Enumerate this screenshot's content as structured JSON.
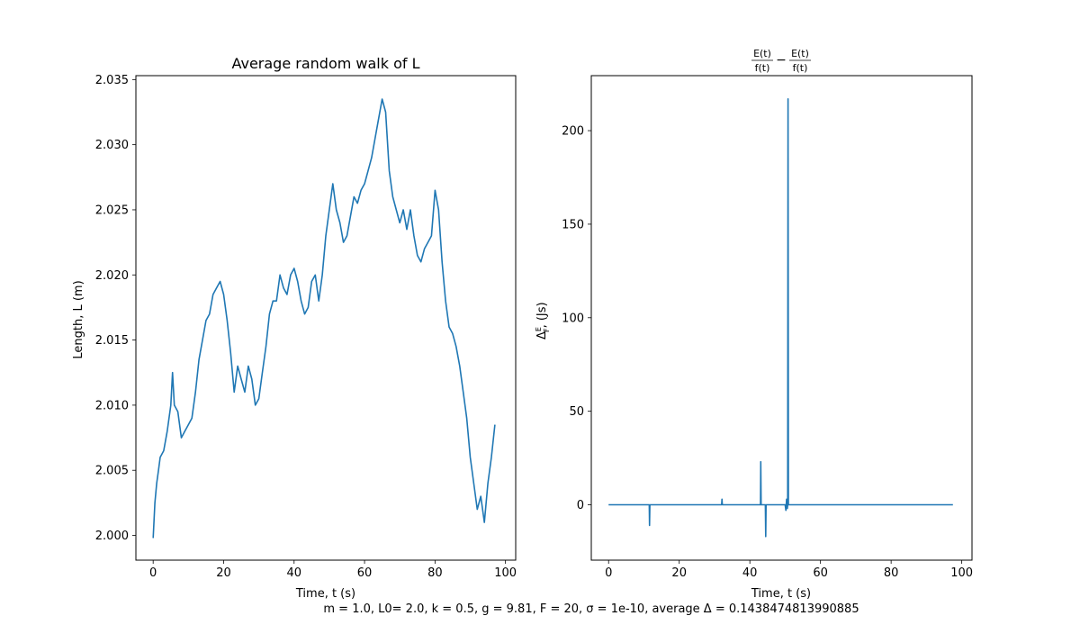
{
  "chart_data": [
    {
      "type": "line",
      "title": "Average random walk of L",
      "xlabel": "Time, t (s)",
      "ylabel": "Length, L (m)",
      "xlim": [
        -4.9,
        102.9
      ],
      "ylim": [
        1.9981,
        2.0353
      ],
      "xticks": [
        0,
        20,
        40,
        60,
        80,
        100
      ],
      "yticks": [
        2.0,
        2.005,
        2.01,
        2.015,
        2.02,
        2.025,
        2.03,
        2.035
      ],
      "ytick_labels": [
        "2.000",
        "2.005",
        "2.010",
        "2.015",
        "2.020",
        "2.025",
        "2.030",
        "2.035"
      ],
      "series": [
        {
          "color": "#1f77b4",
          "x": [
            0,
            0.5,
            1,
            1.5,
            2,
            3,
            4,
            5,
            5.5,
            6,
            7,
            8,
            9,
            10,
            11,
            12,
            13,
            14,
            15,
            16,
            17,
            18,
            19,
            20,
            21,
            22,
            23,
            24,
            25,
            26,
            27,
            28,
            29,
            30,
            31,
            32,
            33,
            34,
            35,
            36,
            37,
            38,
            39,
            40,
            41,
            42,
            43,
            44,
            45,
            46,
            47,
            48,
            49,
            50,
            51,
            52,
            53,
            54,
            55,
            56,
            57,
            58,
            59,
            60,
            61,
            62,
            63,
            64,
            65,
            66,
            67,
            68,
            69,
            70,
            71,
            72,
            73,
            74,
            75,
            76,
            77,
            78,
            79,
            80,
            81,
            82,
            83,
            84,
            85,
            86,
            87,
            88,
            89,
            90,
            91,
            92,
            93,
            94,
            95,
            96,
            97
          ],
          "y": [
            1.9998,
            2.0025,
            2.004,
            2.005,
            2.006,
            2.0065,
            2.008,
            2.01,
            2.0125,
            2.01,
            2.0095,
            2.0075,
            2.008,
            2.0085,
            2.009,
            2.011,
            2.0135,
            2.015,
            2.0165,
            2.017,
            2.0185,
            2.019,
            2.0195,
            2.0185,
            2.0165,
            2.014,
            2.011,
            2.013,
            2.012,
            2.011,
            2.013,
            2.012,
            2.01,
            2.0105,
            2.0125,
            2.0145,
            2.017,
            2.018,
            2.018,
            2.02,
            2.019,
            2.0185,
            2.02,
            2.0205,
            2.0195,
            2.018,
            2.017,
            2.0175,
            2.0195,
            2.02,
            2.018,
            2.02,
            2.023,
            2.025,
            2.027,
            2.025,
            2.024,
            2.0225,
            2.023,
            2.0245,
            2.026,
            2.0255,
            2.0265,
            2.027,
            2.028,
            2.029,
            2.0305,
            2.032,
            2.0335,
            2.0325,
            2.028,
            2.026,
            2.025,
            2.024,
            2.025,
            2.0235,
            2.025,
            2.023,
            2.0215,
            2.021,
            2.022,
            2.0225,
            2.023,
            2.0265,
            2.025,
            2.021,
            2.018,
            2.016,
            2.0155,
            2.0145,
            2.013,
            2.011,
            2.009,
            2.006,
            2.004,
            2.002,
            2.003,
            2.001,
            2.004,
            2.006,
            2.0085
          ]
        }
      ]
    },
    {
      "type": "line",
      "title_parts": [
        "E(t)",
        "f(t)",
        "E(t)",
        "f(t)"
      ],
      "title_operator": "−",
      "xlabel": "Time, t (s)",
      "ylabel_main": "Δ",
      "ylabel_sup": "E",
      "ylabel_sub": "F",
      "ylabel_tail": ", (Js)",
      "xlim": [
        -4.9,
        102.9
      ],
      "ylim": [
        -29.6,
        229.4
      ],
      "xticks": [
        0,
        20,
        40,
        60,
        80,
        100
      ],
      "yticks": [
        0,
        50,
        100,
        150,
        200
      ],
      "series": [
        {
          "color": "#1f77b4",
          "x": [
            0,
            5,
            10,
            11.5,
            11.6,
            11.7,
            15,
            20,
            25,
            30,
            32,
            32.1,
            32.2,
            35,
            40,
            43,
            43.1,
            43.2,
            43.3,
            44.4,
            44.5,
            44.6,
            47,
            50,
            50.2,
            50.4,
            50.6,
            50.7,
            50.8,
            50.9,
            51,
            52,
            55,
            60,
            70,
            80,
            90,
            97.5
          ],
          "y": [
            0,
            0,
            0,
            0,
            -11,
            0,
            0,
            0,
            0,
            0,
            0,
            3,
            0,
            0,
            0,
            0,
            23,
            0,
            0,
            0,
            -17,
            0,
            0,
            0,
            -3,
            3,
            -2,
            0,
            217,
            0,
            0,
            0,
            0,
            0,
            0,
            0,
            0,
            0
          ]
        }
      ]
    }
  ],
  "footer": "m = 1.0, L0= 2.0, k = 0.5, g = 9.81, F = 20, σ = 1e-10, average Δ = 0.1438474813990885"
}
